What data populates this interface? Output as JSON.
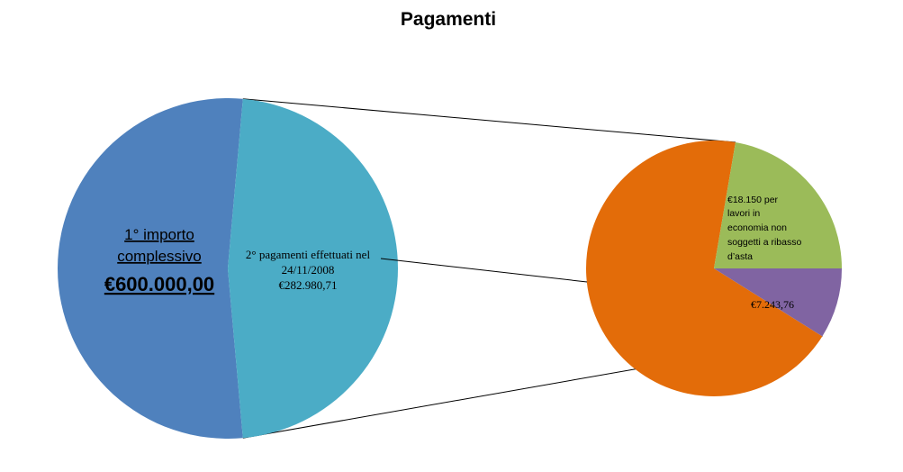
{
  "chart_data": {
    "type": "pie-of-pie",
    "title": "Pagamenti",
    "colors": {
      "main_left": "#4F81BD",
      "main_right": "#4BACC6",
      "sub_orange": "#E36C09",
      "sub_green": "#9BBB59",
      "sub_purple": "#8064A2",
      "connector": "#000000"
    },
    "main_pie": {
      "slices": [
        {
          "name": "main-left",
          "value": 317019.29,
          "lines": [
            "1° importo",
            "complessivo",
            "€600.000,00"
          ]
        },
        {
          "name": "main-right",
          "value": 282980.71,
          "lines": [
            "2° pagamenti effettuati nel",
            "24/11/2008",
            "€282.980,71"
          ]
        }
      ]
    },
    "sub_pie": {
      "slices": [
        {
          "name": "sub-orange",
          "value": 56000,
          "lines": []
        },
        {
          "name": "sub-green",
          "value": 18150,
          "lines": [
            "€18.150 per",
            "lavori in",
            "economia non",
            "soggetti a ribasso",
            "d’asta"
          ]
        },
        {
          "name": "sub-purple",
          "value": 7243.76,
          "lines": [
            "€7.243,76"
          ]
        }
      ]
    }
  }
}
